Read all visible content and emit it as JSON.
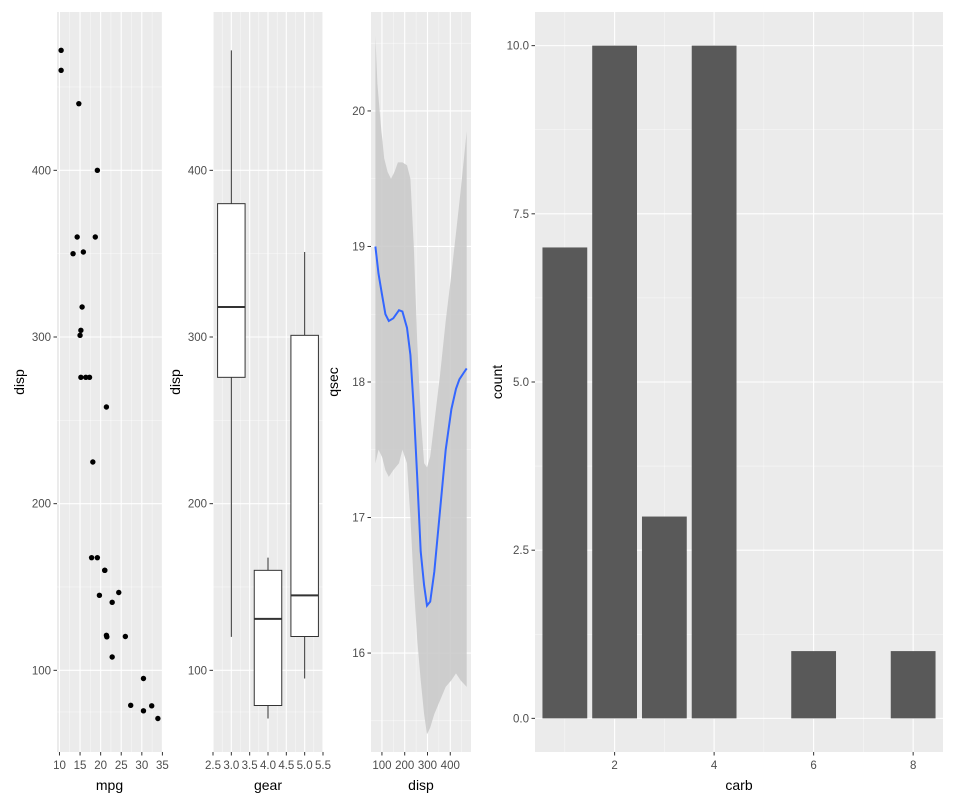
{
  "figure": {
    "background": "#ffffff",
    "panel_background": "#ebebeb",
    "grid_color": "#ffffff",
    "bar_color": "#595959",
    "smooth_color": "#3366ff",
    "ribbon_color": "#c8c8c8"
  },
  "chart_data": [
    {
      "type": "scatter",
      "name": "mpg-vs-disp",
      "xlabel": "mpg",
      "ylabel": "disp",
      "xlim": [
        9.4,
        34.9
      ],
      "ylim": [
        51,
        495
      ],
      "xticks": [
        10,
        15,
        20,
        25,
        30,
        35
      ],
      "yticks": [
        100,
        200,
        300,
        400
      ],
      "points": [
        [
          21.0,
          160
        ],
        [
          21.0,
          160
        ],
        [
          22.8,
          108
        ],
        [
          21.4,
          258
        ],
        [
          18.7,
          360
        ],
        [
          18.1,
          225
        ],
        [
          14.3,
          360
        ],
        [
          24.4,
          146.7
        ],
        [
          22.8,
          140.8
        ],
        [
          19.2,
          167.6
        ],
        [
          17.8,
          167.6
        ],
        [
          16.4,
          275.8
        ],
        [
          17.3,
          275.8
        ],
        [
          15.2,
          275.8
        ],
        [
          10.4,
          472
        ],
        [
          10.4,
          460
        ],
        [
          14.7,
          440
        ],
        [
          32.4,
          78.7
        ],
        [
          30.4,
          75.7
        ],
        [
          33.9,
          71.1
        ],
        [
          21.5,
          120.1
        ],
        [
          15.5,
          318
        ],
        [
          15.2,
          304
        ],
        [
          13.3,
          350
        ],
        [
          19.2,
          400
        ],
        [
          27.3,
          79
        ],
        [
          26.0,
          120.3
        ],
        [
          30.4,
          95.1
        ],
        [
          15.8,
          351
        ],
        [
          19.7,
          145
        ],
        [
          15.0,
          301
        ],
        [
          21.4,
          121
        ]
      ]
    },
    {
      "type": "box",
      "name": "gear-vs-disp",
      "xlabel": "gear",
      "ylabel": "disp",
      "xlim": [
        2.5,
        5.5
      ],
      "ylim": [
        51,
        495
      ],
      "xticks": [
        "2.5",
        "3.0",
        "3.5",
        "4.0",
        "4.5",
        "5.0",
        "5.5"
      ],
      "yticks": [
        100,
        200,
        300,
        400
      ],
      "boxes": [
        {
          "gear": 3,
          "min": 120.1,
          "q1": 275.8,
          "median": 318,
          "q3": 380,
          "max": 472
        },
        {
          "gear": 4,
          "min": 71.1,
          "q1": 78.9,
          "median": 130.9,
          "q3": 160,
          "max": 167.6
        },
        {
          "gear": 5,
          "min": 95.1,
          "q1": 120.3,
          "median": 145,
          "q3": 301,
          "max": 351
        }
      ]
    },
    {
      "type": "line",
      "name": "disp-vs-qsec-smooth",
      "xlabel": "disp",
      "ylabel": "qsec",
      "xlim": [
        52,
        491
      ],
      "ylim": [
        15.27,
        20.73
      ],
      "xticks": [
        100,
        200,
        300,
        400
      ],
      "yticks": [
        16,
        17,
        18,
        19,
        20
      ],
      "smooth": [
        [
          71.1,
          19.0
        ],
        [
          85,
          18.8
        ],
        [
          100,
          18.65
        ],
        [
          115,
          18.5
        ],
        [
          130,
          18.45
        ],
        [
          150,
          18.47
        ],
        [
          175,
          18.53
        ],
        [
          190,
          18.52
        ],
        [
          210,
          18.4
        ],
        [
          225,
          18.2
        ],
        [
          240,
          17.8
        ],
        [
          255,
          17.3
        ],
        [
          270,
          16.75
        ],
        [
          285,
          16.5
        ],
        [
          298,
          16.35
        ],
        [
          312,
          16.38
        ],
        [
          330,
          16.6
        ],
        [
          355,
          17.05
        ],
        [
          380,
          17.5
        ],
        [
          405,
          17.8
        ],
        [
          425,
          17.95
        ],
        [
          440,
          18.02
        ],
        [
          460,
          18.07
        ],
        [
          472,
          18.1
        ]
      ],
      "ribbon_upper": [
        [
          71.1,
          20.55
        ],
        [
          80,
          20.2
        ],
        [
          95,
          19.9
        ],
        [
          110,
          19.65
        ],
        [
          125,
          19.55
        ],
        [
          140,
          19.5
        ],
        [
          155,
          19.55
        ],
        [
          170,
          19.62
        ],
        [
          190,
          19.62
        ],
        [
          210,
          19.6
        ],
        [
          225,
          19.5
        ],
        [
          240,
          19.0
        ],
        [
          255,
          18.3
        ],
        [
          270,
          17.75
        ],
        [
          285,
          17.4
        ],
        [
          298,
          17.37
        ],
        [
          312,
          17.45
        ],
        [
          330,
          17.7
        ],
        [
          355,
          18.05
        ],
        [
          380,
          18.45
        ],
        [
          405,
          18.8
        ],
        [
          425,
          19.1
        ],
        [
          445,
          19.4
        ],
        [
          472,
          19.85
        ]
      ],
      "ribbon_lower": [
        [
          71.1,
          17.4
        ],
        [
          85,
          17.5
        ],
        [
          100,
          17.45
        ],
        [
          115,
          17.35
        ],
        [
          130,
          17.3
        ],
        [
          150,
          17.35
        ],
        [
          175,
          17.4
        ],
        [
          190,
          17.5
        ],
        [
          210,
          17.4
        ],
        [
          225,
          17.0
        ],
        [
          240,
          16.5
        ],
        [
          255,
          16.1
        ],
        [
          270,
          15.8
        ],
        [
          285,
          15.55
        ],
        [
          298,
          15.4
        ],
        [
          312,
          15.45
        ],
        [
          330,
          15.55
        ],
        [
          355,
          15.65
        ],
        [
          380,
          15.75
        ],
        [
          405,
          15.8
        ],
        [
          425,
          15.85
        ],
        [
          445,
          15.8
        ],
        [
          472,
          15.75
        ]
      ]
    },
    {
      "type": "bar",
      "name": "carb-count",
      "xlabel": "carb",
      "ylabel": "count",
      "xlim": [
        0.4,
        8.6
      ],
      "ylim": [
        -0.5,
        10.5
      ],
      "xticks": [
        2,
        4,
        6,
        8
      ],
      "yticks": [
        "0.0",
        "2.5",
        "5.0",
        "7.5",
        "10.0"
      ],
      "categories": [
        1,
        2,
        3,
        4,
        6,
        8
      ],
      "values": [
        7,
        10,
        3,
        10,
        1,
        1
      ]
    }
  ]
}
